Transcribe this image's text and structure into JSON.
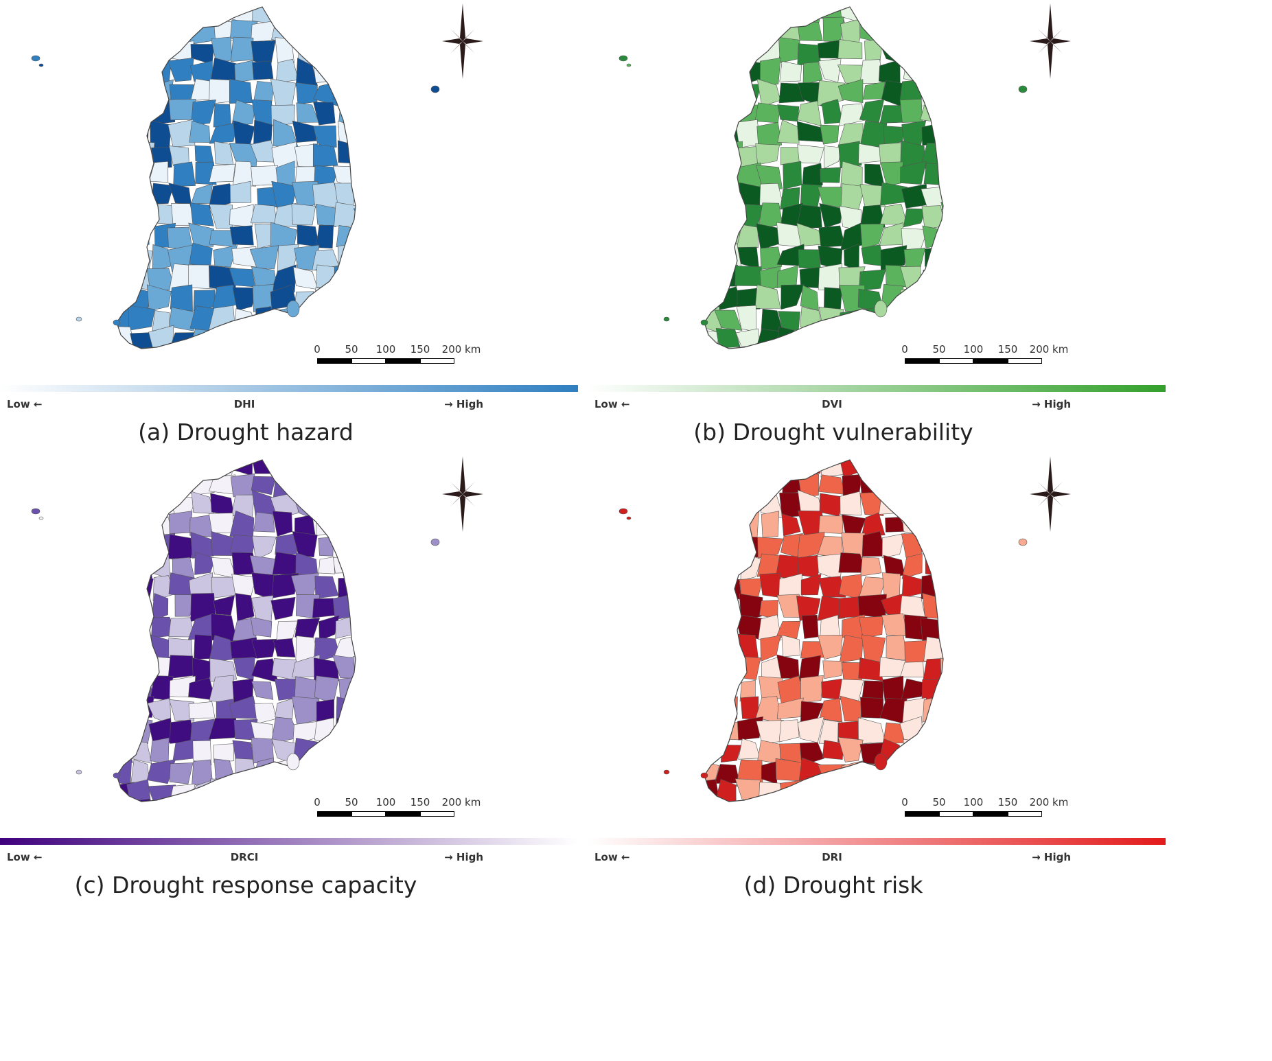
{
  "panels": [
    {
      "id": "a",
      "caption": "(a) Drought hazard",
      "legend_title": "DHI",
      "legend_low": "Low ←",
      "legend_high": "→ High",
      "ramp_colors": [
        "#eaf2fa",
        "#b9d5ea",
        "#6aa8d6",
        "#2f7fc1",
        "#0f4d92"
      ],
      "ramp_direction": "low-to-high",
      "legend_gradient": [
        "#ffffff",
        "#2f7fc1"
      ],
      "scale_labels": [
        "0",
        "50",
        "100",
        "150",
        "200 km"
      ]
    },
    {
      "id": "b",
      "caption": "(b) Drought vulnerability",
      "legend_title": "DVI",
      "legend_low": "Low ←",
      "legend_high": "→ High",
      "ramp_colors": [
        "#e6f4e3",
        "#a9d99f",
        "#5cb35e",
        "#2a8a3c",
        "#0a5a22"
      ],
      "ramp_direction": "low-to-high",
      "legend_gradient": [
        "#ffffff",
        "#33a02c"
      ],
      "scale_labels": [
        "0",
        "50",
        "100",
        "150",
        "200 km"
      ]
    },
    {
      "id": "c",
      "caption": "(c) Drought response capacity",
      "legend_title": "DRCI",
      "legend_low": "Low ←",
      "legend_high": "→ High",
      "ramp_colors": [
        "#f4f2f8",
        "#cbc5e2",
        "#9d8fc8",
        "#6a52ac",
        "#3f0d80"
      ],
      "ramp_direction": "high-to-low",
      "legend_gradient": [
        "#3f007d",
        "#ffffff"
      ],
      "scale_labels": [
        "0",
        "50",
        "100",
        "150",
        "200 km"
      ]
    },
    {
      "id": "d",
      "caption": "(d) Drought risk",
      "legend_title": "DRI",
      "legend_low": "Low ←",
      "legend_high": "→ High",
      "ramp_colors": [
        "#fde6dd",
        "#f8ab91",
        "#ef6549",
        "#cf1f1f",
        "#86040f"
      ],
      "ramp_direction": "low-to-high",
      "legend_gradient": [
        "#ffffff",
        "#e31a1c"
      ],
      "scale_labels": [
        "0",
        "50",
        "100",
        "150",
        "200 km"
      ]
    }
  ]
}
